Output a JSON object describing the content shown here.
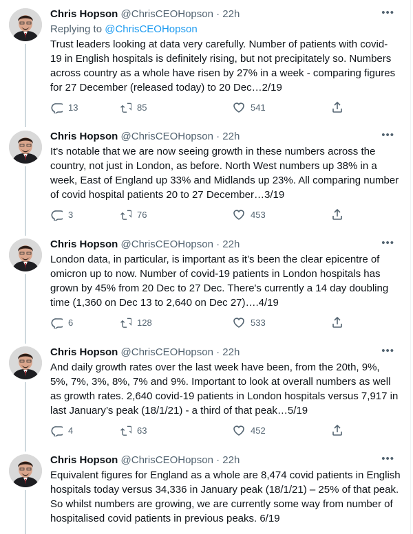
{
  "colors": {
    "link": "#1d9bf0",
    "muted": "#536471",
    "text": "#0f1419",
    "thread_line": "#cfd9de"
  },
  "tweets": [
    {
      "name": "Chris Hopson",
      "handle": "@ChrisCEOHopson",
      "time": "22h",
      "replying_label": "Replying to",
      "replying_to": "@ChrisCEOHopson",
      "body": [
        "Trust leaders looking at data very carefully. Number of patients with covid-",
        "19 in English hospitals is definitely rising, but not precipitately so. Numbers",
        "across country as a whole have risen by 27% in a week - comparing figures",
        "for 27 December (released today) to 20 Dec…2/19"
      ],
      "replies": "13",
      "retweets": "85",
      "likes": "541"
    },
    {
      "name": "Chris Hopson",
      "handle": "@ChrisCEOHopson",
      "time": "22h",
      "body": [
        "It's notable that we are now seeing growth in these numbers across the",
        "country, not just in London, as before. North West numbers up 38% in a",
        "week, East of England up 33% and Midlands up 23%. All comparing number",
        "of covid hospital patients 20 to 27 December…3/19"
      ],
      "replies": "3",
      "retweets": "76",
      "likes": "453"
    },
    {
      "name": "Chris Hopson",
      "handle": "@ChrisCEOHopson",
      "time": "22h",
      "body": [
        "London data, in particular, is important as it’s been the clear epicentre of",
        "omicron up to now. Number of covid-19 patients in London hospitals has",
        "grown by 45% from 20 Dec to 27 Dec. There's currently a 14 day doubling",
        "time (1,360 on Dec 13 to 2,640 on Dec 27)….4/19"
      ],
      "replies": "6",
      "retweets": "128",
      "likes": "533"
    },
    {
      "name": "Chris Hopson",
      "handle": "@ChrisCEOHopson",
      "time": "22h",
      "body": [
        "And daily growth rates over the last week have been, from the 20th, 9%,",
        "5%, 7%, 3%, 8%, 7% and 9%. Important to look at overall numbers as well",
        "as growth rates. 2,640 covid-19 patients in London hospitals versus 7,917 in",
        "last January’s peak (18/1/21) - a third of that peak…5/19"
      ],
      "replies": "4",
      "retweets": "63",
      "likes": "452"
    },
    {
      "name": "Chris Hopson",
      "handle": "@ChrisCEOHopson",
      "time": "22h",
      "body": [
        "Equivalent figures for England as a whole are 8,474 covid patients in English",
        "hospitals today versus 34,336 in January peak (18/1/21) – 25% of that peak.",
        "So whilst numbers are growing, we are currently some way from number of",
        "hospitalised covid patients in previous peaks. 6/19"
      ]
    }
  ]
}
